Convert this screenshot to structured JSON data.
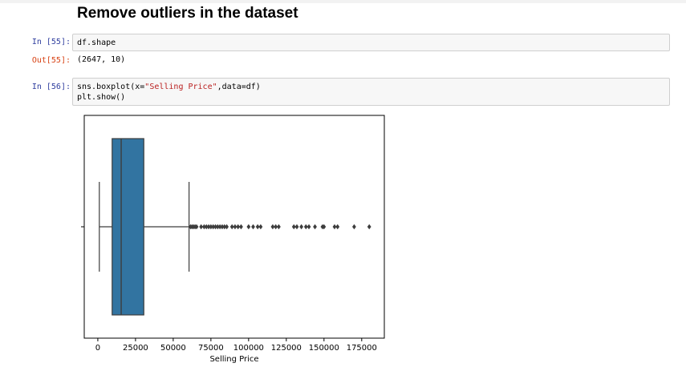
{
  "heading": "Remove outliers in the dataset",
  "cells": [
    {
      "in_prompt": "In [55]:",
      "code": "df.shape",
      "out_prompt": "Out[55]:",
      "output": "(2647, 10)"
    },
    {
      "in_prompt": "In [56]:",
      "code_line1_pre": "sns.boxplot(x=",
      "code_line1_str": "\"Selling Price\"",
      "code_line1_post": ",data=df)",
      "code_line2": "plt.show()"
    }
  ],
  "chart_data": {
    "type": "boxplot",
    "orientation": "horizontal",
    "xlabel": "Selling Price",
    "xlim": [
      -9000,
      190000
    ],
    "xticks": [
      0,
      25000,
      50000,
      75000,
      100000,
      125000,
      150000,
      175000
    ],
    "xtick_labels": [
      "0",
      "25000",
      "50000",
      "75000",
      "100000",
      "125000",
      "150000",
      "175000"
    ],
    "box": {
      "whisker_low": 1000,
      "q1": 9500,
      "median": 15500,
      "q3": 30500,
      "whisker_high": 60500
    },
    "outliers": [
      61500,
      62500,
      63500,
      64500,
      65500,
      68500,
      70500,
      72000,
      73500,
      75000,
      76500,
      78000,
      79500,
      81000,
      82500,
      84000,
      85500,
      89000,
      91000,
      93000,
      95000,
      100000,
      103000,
      106000,
      108000,
      116000,
      118000,
      120000,
      130000,
      132000,
      135000,
      138000,
      140000,
      144000,
      149000,
      150000,
      157000,
      159000,
      170000,
      180000
    ],
    "box_color": "#3274a1",
    "grid": false
  }
}
